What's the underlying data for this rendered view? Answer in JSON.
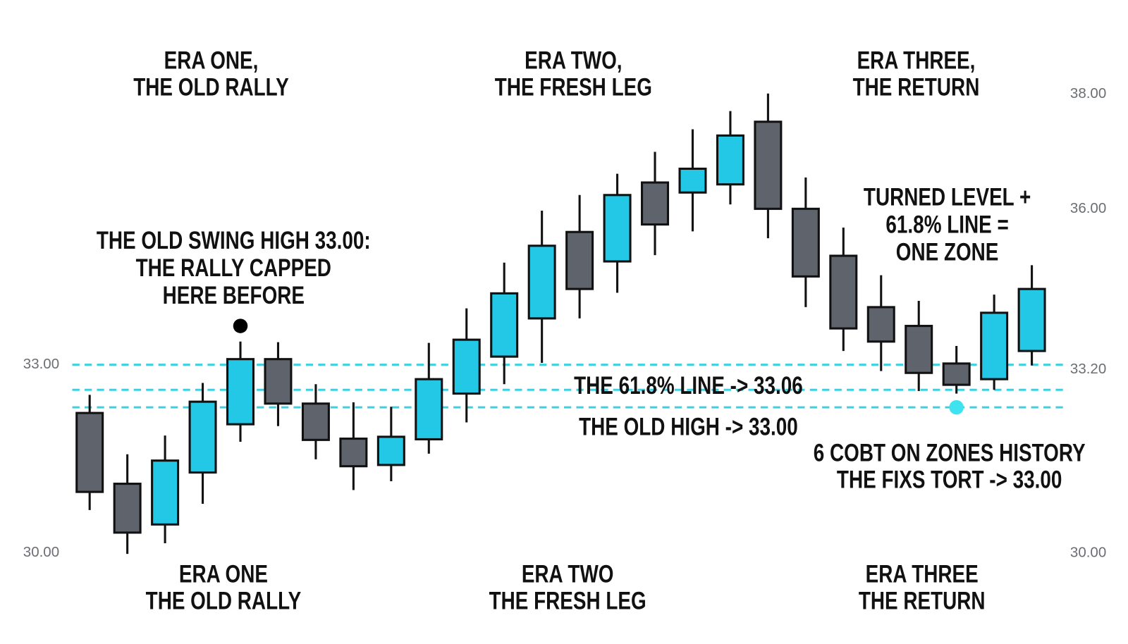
{
  "chart_data": {
    "type": "candlestick",
    "categories": [
      null,
      null,
      null,
      null,
      null,
      null,
      null,
      null,
      null,
      null,
      null,
      null,
      null,
      null,
      null,
      null,
      null,
      null,
      null,
      null,
      null,
      null,
      null,
      null,
      null,
      null
    ],
    "open": [
      32.23,
      31.1,
      30.45,
      31.28,
      32.05,
      33.09,
      32.38,
      31.82,
      31.4,
      31.81,
      32.54,
      33.13,
      33.74,
      35.12,
      34.65,
      35.91,
      35.75,
      35.88,
      36.88,
      35.49,
      34.74,
      33.92,
      33.62,
      33.02,
      32.77,
      33.22
    ],
    "high": [
      32.52,
      31.57,
      31.87,
      32.71,
      33.37,
      33.36,
      32.69,
      32.4,
      32.33,
      33.35,
      33.9,
      34.63,
      35.46,
      35.71,
      36.05,
      36.4,
      36.76,
      37.05,
      37.33,
      35.99,
      35.19,
      34.43,
      34.02,
      33.3,
      34.12,
      34.59
    ],
    "low": [
      30.68,
      29.98,
      30.15,
      30.78,
      31.77,
      32.02,
      31.49,
      31.0,
      31.14,
      31.58,
      32.08,
      32.69,
      33.03,
      33.74,
      34.15,
      34.75,
      35.13,
      35.56,
      35.02,
      33.92,
      33.22,
      32.9,
      32.58,
      32.54,
      32.6,
      32.99
    ],
    "close": [
      30.97,
      30.32,
      31.47,
      32.41,
      33.09,
      32.38,
      31.8,
      31.38,
      31.85,
      32.77,
      33.4,
      34.14,
      34.9,
      34.21,
      35.71,
      35.24,
      36.13,
      36.66,
      35.49,
      34.41,
      33.58,
      33.37,
      32.87,
      32.68,
      33.83,
      34.21
    ],
    "up_color": "#22c8e6",
    "down_color": "#5f636b",
    "ylim": [
      29.5,
      38.5
    ],
    "yticks": [
      {
        "value": 30,
        "label": "30.00"
      },
      {
        "value": 33,
        "label": "33.00"
      }
    ],
    "y2lim": [
      29.46,
      39.29
    ],
    "y2ticks": [
      {
        "value": 30,
        "label": "30.00"
      },
      {
        "value": 33.2,
        "label": "33.20"
      },
      {
        "value": 36,
        "label": "36.00"
      },
      {
        "value": 38,
        "label": "38.00"
      }
    ],
    "levels": [
      33.0,
      32.6,
      32.32
    ],
    "level_color": "#3fd0e0",
    "markers": [
      {
        "index": 4,
        "value": 33.62,
        "color": "#000000"
      },
      {
        "index": 23,
        "value": 32.32,
        "color": "#3fe3f0"
      }
    ],
    "era_labels_top": [
      [
        "ERA ONE,",
        "THE OLD RALLY"
      ],
      [
        "ERA TWO,",
        "THE FRESH LEG"
      ],
      [
        "ERA THREE,",
        "THE RETURN"
      ]
    ],
    "era_labels_bottom": [
      [
        "ERA ONE",
        "THE OLD RALLY"
      ],
      [
        "ERA TWO",
        "THE FRESH LEG"
      ],
      [
        "ERA THREE",
        "THE RETURN"
      ]
    ],
    "annotations": [
      [
        "THE OLD SWING HIGH 33.00:",
        "THE RALLY CAPPED",
        "HERE BEFORE"
      ],
      [
        "TURNED LEVEL +",
        "61.8% LINE =",
        "ONE ZONE"
      ],
      [
        "THE 61.8% LINE -> 33.06"
      ],
      [
        "THE OLD HIGH -> 33.00"
      ],
      [
        "6 COBT ON ZONES HISTORY",
        "THE FIXS TORT -> 33.00"
      ]
    ]
  }
}
